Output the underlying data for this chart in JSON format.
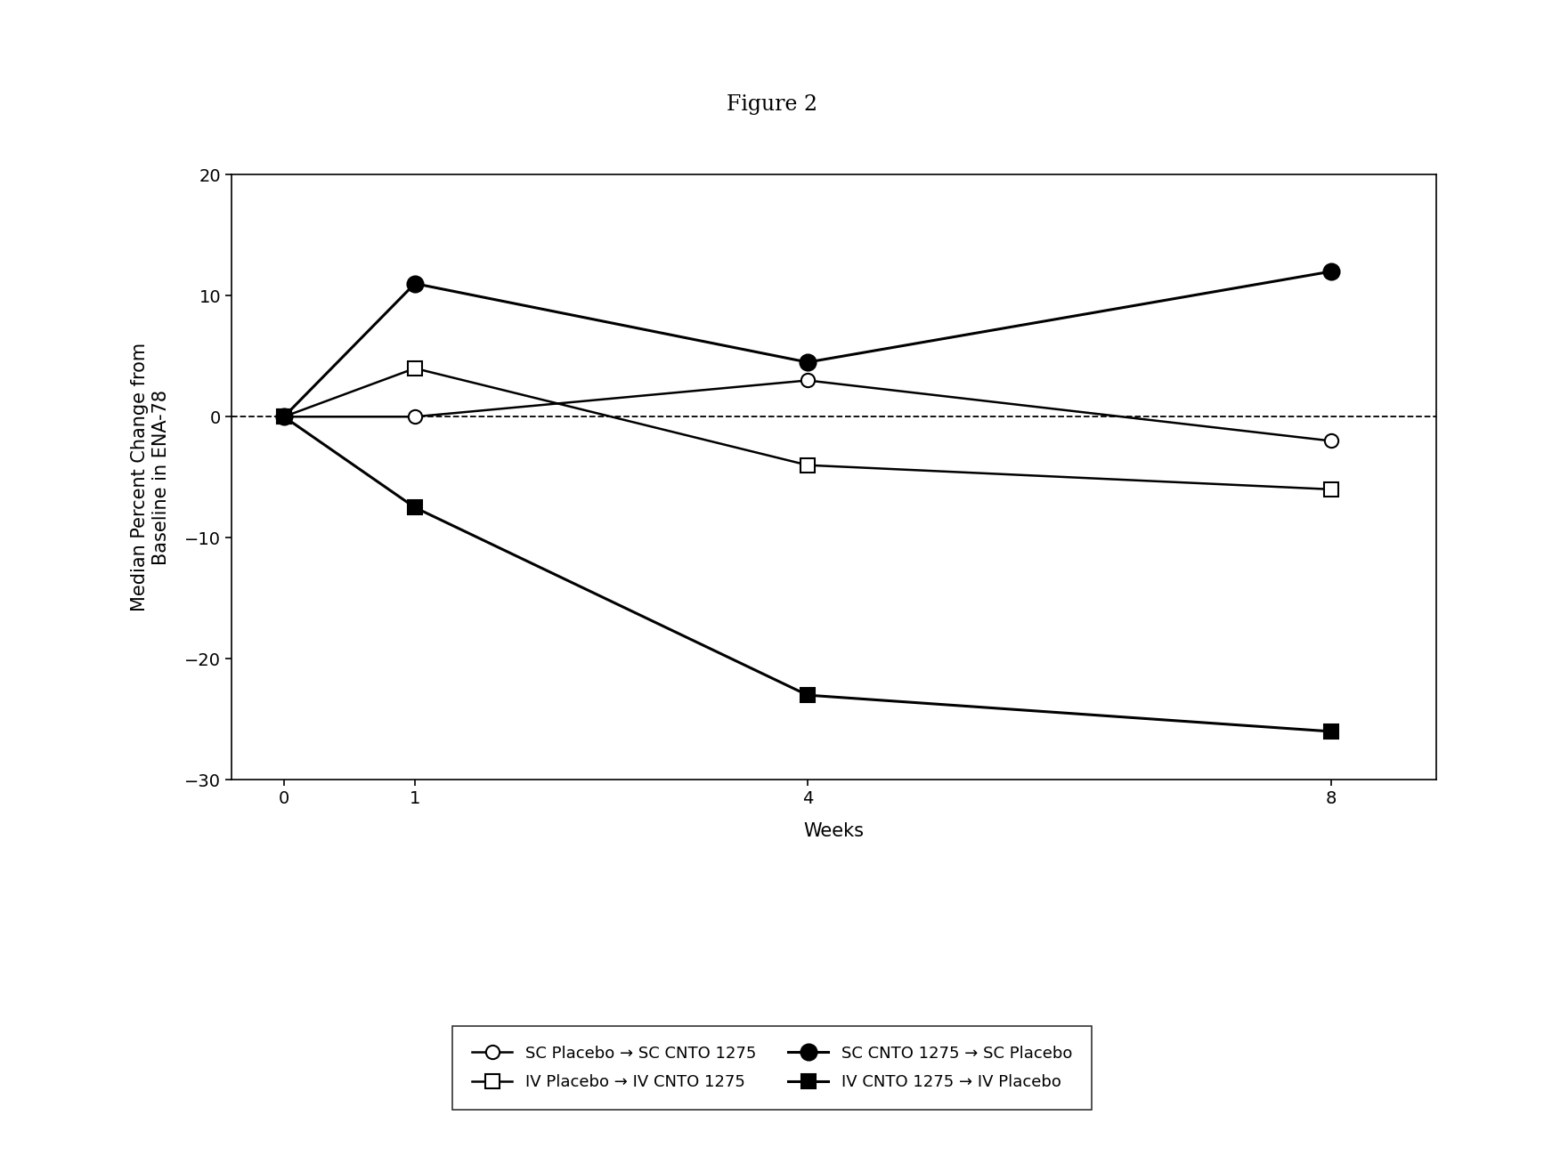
{
  "title": "Figure 2",
  "xlabel": "Weeks",
  "ylabel": "Median Percent Change from\nBaseline in ENA-78",
  "weeks": [
    0,
    1,
    4,
    8
  ],
  "series": [
    {
      "label": "SC Placebo → SC CNTO 1275",
      "values": [
        0,
        0,
        3,
        -2
      ],
      "marker": "o",
      "fillstyle": "none",
      "color": "black",
      "linewidth": 1.8,
      "markersize": 11
    },
    {
      "label": "IV Placebo → IV CNTO 1275",
      "values": [
        0,
        4,
        -4,
        -6
      ],
      "marker": "s",
      "fillstyle": "none",
      "color": "black",
      "linewidth": 1.8,
      "markersize": 11
    },
    {
      "label": "SC CNTO 1275 → SC Placebo",
      "values": [
        0,
        11,
        4.5,
        12
      ],
      "marker": "o",
      "fillstyle": "full",
      "color": "black",
      "linewidth": 2.2,
      "markersize": 13
    },
    {
      "label": "IV CNTO 1275 → IV Placebo",
      "values": [
        0,
        -7.5,
        -23,
        -26
      ],
      "marker": "s",
      "fillstyle": "full",
      "color": "black",
      "linewidth": 2.2,
      "markersize": 11
    }
  ],
  "ylim": [
    -30,
    20
  ],
  "yticks": [
    -30,
    -20,
    -10,
    0,
    10,
    20
  ],
  "xticks": [
    0,
    1,
    4,
    8
  ],
  "dashed_y": 0,
  "background_color": "#ffffff",
  "title_fontsize": 17,
  "label_fontsize": 15,
  "tick_fontsize": 14,
  "legend_fontsize": 13
}
